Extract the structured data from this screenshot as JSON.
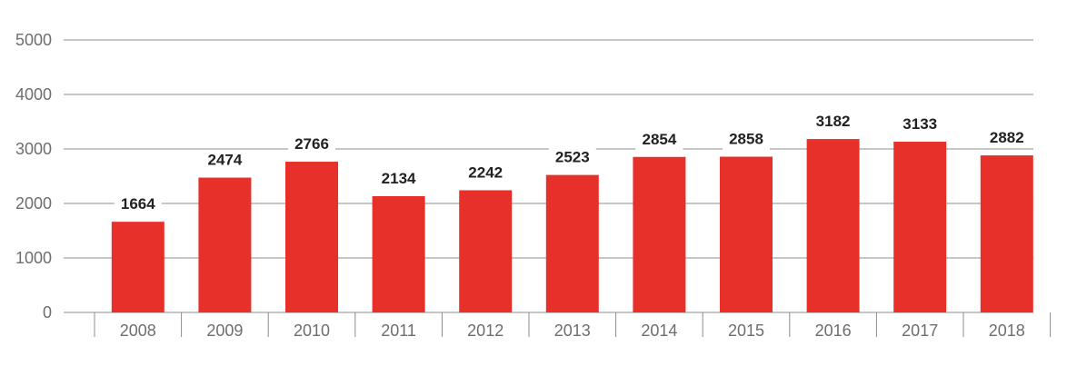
{
  "chart_data": {
    "type": "bar",
    "categories": [
      "2008",
      "2009",
      "2010",
      "2011",
      "2012",
      "2013",
      "2014",
      "2015",
      "2016",
      "2017",
      "2018"
    ],
    "values": [
      1664,
      2474,
      2766,
      2134,
      2242,
      2523,
      2854,
      2858,
      3182,
      3133,
      2882
    ],
    "y_ticks": [
      "0",
      "1000",
      "2000",
      "3000",
      "4000",
      "5000"
    ],
    "ylim": [
      0,
      5000
    ],
    "grid": true,
    "bar_color": "#e8302a",
    "label_background": "#ffffff"
  }
}
